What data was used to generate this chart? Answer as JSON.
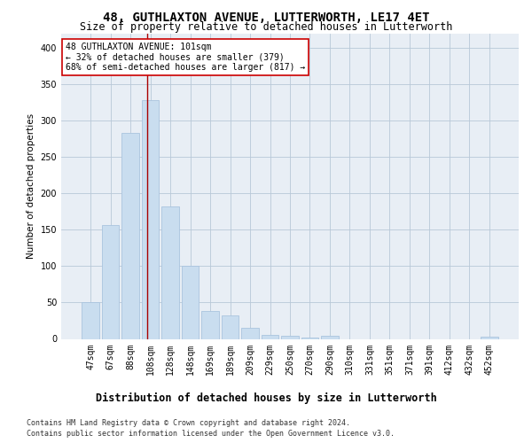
{
  "title": "48, GUTHLAXTON AVENUE, LUTTERWORTH, LE17 4ET",
  "subtitle": "Size of property relative to detached houses in Lutterworth",
  "xlabel": "Distribution of detached houses by size in Lutterworth",
  "ylabel": "Number of detached properties",
  "bar_color": "#c9ddef",
  "bar_edge_color": "#aac4de",
  "background_color": "#ffffff",
  "plot_bg_color": "#e8eef5",
  "grid_color": "#b8c8d8",
  "vline_color": "#aa0000",
  "annotation_text": "48 GUTHLAXTON AVENUE: 101sqm\n← 32% of detached houses are smaller (379)\n68% of semi-detached houses are larger (817) →",
  "annotation_box_color": "#ffffff",
  "annotation_box_edge": "#cc0000",
  "categories": [
    "47sqm",
    "67sqm",
    "88sqm",
    "108sqm",
    "128sqm",
    "148sqm",
    "169sqm",
    "189sqm",
    "209sqm",
    "229sqm",
    "250sqm",
    "270sqm",
    "290sqm",
    "310sqm",
    "331sqm",
    "351sqm",
    "371sqm",
    "391sqm",
    "412sqm",
    "432sqm",
    "452sqm"
  ],
  "values": [
    50,
    157,
    283,
    328,
    182,
    100,
    38,
    32,
    15,
    6,
    4,
    2,
    4,
    0,
    0,
    0,
    0,
    0,
    0,
    0,
    3
  ],
  "ylim": [
    0,
    420
  ],
  "yticks": [
    0,
    50,
    100,
    150,
    200,
    250,
    300,
    350,
    400
  ],
  "footer_line1": "Contains HM Land Registry data © Crown copyright and database right 2024.",
  "footer_line2": "Contains public sector information licensed under the Open Government Licence v3.0.",
  "title_fontsize": 10,
  "subtitle_fontsize": 8.5,
  "tick_fontsize": 7,
  "ylabel_fontsize": 7.5,
  "xlabel_fontsize": 8.5,
  "annotation_fontsize": 7,
  "footer_fontsize": 6
}
